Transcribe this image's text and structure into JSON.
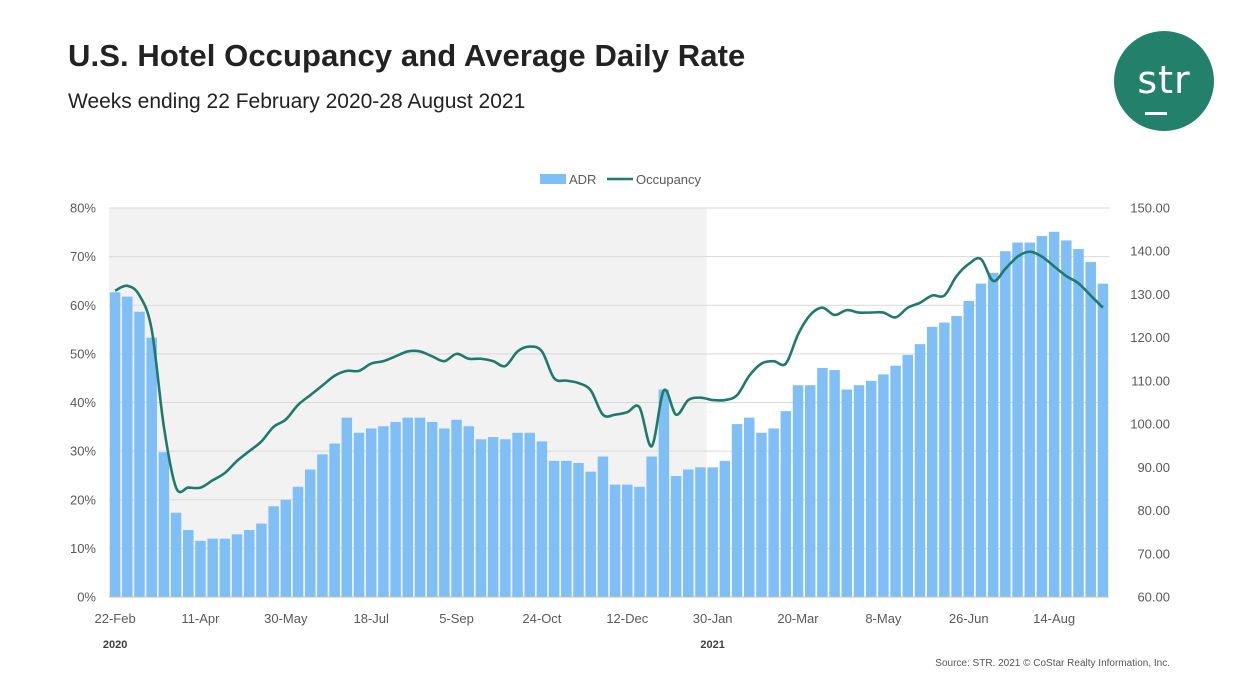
{
  "header": {
    "title": "U.S. Hotel Occupancy and Average Daily Rate",
    "subtitle": "Weeks ending 22 February 2020-28 August 2021"
  },
  "logo": {
    "text": "str",
    "color": "#23806a"
  },
  "footer": {
    "source": "Source: STR. 2021 © CoStar Realty Information, Inc."
  },
  "chart_data": {
    "type": "bar+line",
    "legend": {
      "position": "top",
      "items": [
        "ADR",
        "Occupancy"
      ]
    },
    "x_tick_labels": [
      "22-Feb",
      "11-Apr",
      "30-May",
      "18-Jul",
      "5-Sep",
      "24-Oct",
      "12-Dec",
      "30-Jan",
      "20-Mar",
      "8-May",
      "26-Jun",
      "14-Aug"
    ],
    "year_labels": [
      {
        "label": "2020",
        "week_index": 0
      },
      {
        "label": "2021",
        "week_index": 49
      }
    ],
    "left_axis": {
      "range": [
        0,
        80
      ],
      "ticks": [
        "0%",
        "10%",
        "20%",
        "30%",
        "40%",
        "50%",
        "60%",
        "70%",
        "80%"
      ]
    },
    "right_axis": {
      "range": [
        60,
        150
      ],
      "ticks": [
        "60.00",
        "70.00",
        "80.00",
        "90.00",
        "100.00",
        "110.00",
        "120.00",
        "130.00",
        "140.00",
        "150.00"
      ]
    },
    "shaded_region": {
      "from_week": 0,
      "to_week": 48,
      "label": "2020"
    },
    "series": [
      {
        "name": "ADR",
        "type": "bar",
        "axis": "right",
        "color": "#7fbff5",
        "values": [
          130.5,
          129.5,
          126.0,
          120.0,
          93.5,
          79.5,
          75.5,
          73.0,
          73.5,
          73.5,
          74.5,
          75.5,
          77.0,
          81.0,
          82.5,
          85.5,
          89.5,
          93.0,
          95.5,
          101.5,
          98.0,
          99.0,
          99.5,
          100.5,
          101.5,
          101.5,
          100.5,
          99.0,
          101.0,
          99.5,
          96.5,
          97.0,
          96.5,
          98.0,
          98.0,
          96.0,
          91.5,
          91.5,
          91.0,
          89.0,
          92.5,
          86.0,
          86.0,
          85.5,
          92.5,
          108.0,
          88.0,
          89.5,
          90.0,
          90.0,
          91.5,
          100.0,
          101.5,
          98.0,
          99.0,
          103.0,
          109.0,
          109.0,
          113.0,
          112.5,
          108.0,
          109.0,
          110.0,
          111.5,
          113.5,
          116.0,
          118.5,
          122.5,
          123.5,
          125.0,
          128.5,
          132.5,
          135.0,
          140.0,
          142.0,
          142.0,
          143.5,
          144.5,
          142.5,
          140.5,
          137.5,
          132.5
        ]
      },
      {
        "name": "Occupancy",
        "type": "line",
        "axis": "left",
        "color": "#1f7a6c",
        "values": [
          63.0,
          64.0,
          62.0,
          55.0,
          35.0,
          22.5,
          22.5,
          22.5,
          24.0,
          25.5,
          28.0,
          30.0,
          32.0,
          35.0,
          36.5,
          39.5,
          41.5,
          43.5,
          45.5,
          46.5,
          46.5,
          48.0,
          48.5,
          49.5,
          50.5,
          50.5,
          49.5,
          48.5,
          50.0,
          49.0,
          49.0,
          48.5,
          47.5,
          50.5,
          51.5,
          50.5,
          45.0,
          44.5,
          44.0,
          42.5,
          37.5,
          37.5,
          38.0,
          39.0,
          31.0,
          42.5,
          37.5,
          40.5,
          41.0,
          40.5,
          40.5,
          41.5,
          45.5,
          48.0,
          48.5,
          48.0,
          54.0,
          58.0,
          59.5,
          58.0,
          59.0,
          58.5,
          58.5,
          58.5,
          57.5,
          59.5,
          60.5,
          62.0,
          62.0,
          66.0,
          68.5,
          69.5,
          65.0,
          67.5,
          70.0,
          71.0,
          70.0,
          68.0,
          66.0,
          64.5,
          62.0,
          59.5
        ]
      }
    ]
  }
}
